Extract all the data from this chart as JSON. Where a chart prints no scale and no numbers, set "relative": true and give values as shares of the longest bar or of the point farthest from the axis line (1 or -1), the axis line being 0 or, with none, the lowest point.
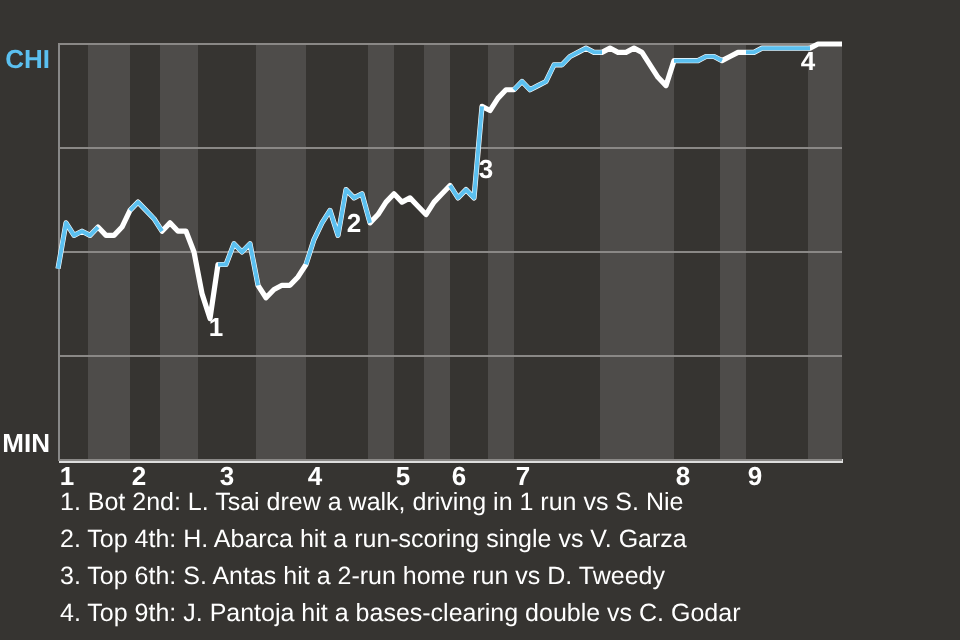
{
  "chart_data": {
    "type": "line",
    "relative": true,
    "categories": [
      null,
      "1",
      null,
      null,
      null,
      null,
      null,
      null,
      null,
      null,
      "2",
      null,
      null,
      null,
      null,
      null,
      null,
      null,
      null,
      null,
      null,
      "3",
      null,
      null,
      null,
      null,
      null,
      null,
      null,
      null,
      null,
      null,
      "4",
      null,
      null,
      null,
      null,
      null,
      null,
      null,
      null,
      null,
      null,
      "5",
      null,
      null,
      null,
      null,
      null,
      null,
      "6",
      null,
      null,
      null,
      null,
      null,
      null,
      null,
      "7",
      null,
      null,
      null,
      null,
      null,
      null,
      null,
      null,
      null,
      null,
      null,
      null,
      null,
      null,
      null,
      null,
      null,
      null,
      null,
      "8",
      null,
      null,
      null,
      null,
      null,
      null,
      null,
      null,
      "9",
      null,
      null,
      null,
      null,
      null,
      null,
      null,
      null,
      null,
      null,
      null
    ],
    "series": [
      {
        "color": "#ffffff",
        "values": [
          0.46,
          0.57,
          0.54,
          0.55,
          0.54,
          0.56,
          0.54,
          0.54,
          0.56,
          0.6,
          0.62,
          0.6,
          0.58,
          0.55,
          0.57,
          0.55,
          0.55,
          0.5,
          0.4,
          0.34,
          0.47,
          0.47,
          0.52,
          0.5,
          0.52,
          0.42,
          0.39,
          0.41,
          0.42,
          0.42,
          0.44,
          0.47,
          0.53,
          0.57,
          0.6,
          0.54,
          0.65,
          0.63,
          0.64,
          0.57,
          0.59,
          0.62,
          0.64,
          0.62,
          0.63,
          0.61,
          0.59,
          0.62,
          0.64,
          0.66,
          0.63,
          0.65,
          0.63,
          0.85,
          0.84,
          0.87,
          0.89,
          0.89,
          0.91,
          0.89,
          0.9,
          0.91,
          0.95,
          0.95,
          0.97,
          0.98,
          0.99,
          0.98,
          0.98,
          0.99,
          0.98,
          0.98,
          0.99,
          0.98,
          0.95,
          0.92,
          0.9,
          0.96,
          0.96,
          0.96,
          0.96,
          0.97,
          0.97,
          0.96,
          0.97,
          0.98,
          0.98,
          0.98,
          0.99,
          0.99,
          0.99,
          0.99,
          0.99,
          0.99,
          0.99,
          1.0,
          1.0,
          1.0,
          1.0
        ]
      },
      {
        "color": "#5bc0f0",
        "values": [
          0.46,
          0.57,
          0.54,
          0.55,
          0.54,
          0.56,
          null,
          null,
          null,
          0.6,
          0.62,
          0.6,
          0.58,
          0.55,
          null,
          null,
          null,
          null,
          null,
          null,
          0.47,
          0.47,
          0.52,
          0.5,
          0.52,
          0.42,
          null,
          null,
          null,
          null,
          null,
          0.47,
          0.53,
          0.57,
          0.6,
          0.54,
          0.65,
          0.63,
          0.64,
          0.57,
          null,
          null,
          null,
          null,
          null,
          null,
          null,
          null,
          null,
          0.66,
          0.63,
          0.65,
          0.63,
          0.85,
          null,
          null,
          null,
          0.89,
          0.91,
          0.89,
          0.9,
          0.91,
          0.95,
          0.95,
          0.97,
          0.98,
          0.99,
          0.98,
          0.98,
          null,
          null,
          null,
          null,
          null,
          null,
          null,
          null,
          0.96,
          0.96,
          0.96,
          0.96,
          0.97,
          0.97,
          0.96,
          null,
          null,
          0.98,
          0.98,
          0.99,
          0.99,
          0.99,
          0.99,
          0.99,
          0.99,
          0.99,
          null,
          null,
          null,
          null
        ]
      }
    ],
    "grid": "y",
    "marker": "none",
    "line_style": "solid",
    "annotations": [
      "CHI",
      "MIN",
      "1",
      "2",
      "3",
      "4",
      "1. Bot 2nd: L. Tsai drew a walk, driving in 1 run vs S. Nie",
      "2. Top 4th: H. Abarca hit a run-scoring single vs V. Garza",
      "3. Top 6th: S. Antas hit a 2-run home run vs D. Tweedy",
      "4. Top 9th: J. Pantoja hit a bases-clearing double vs C. Godar"
    ]
  }
}
